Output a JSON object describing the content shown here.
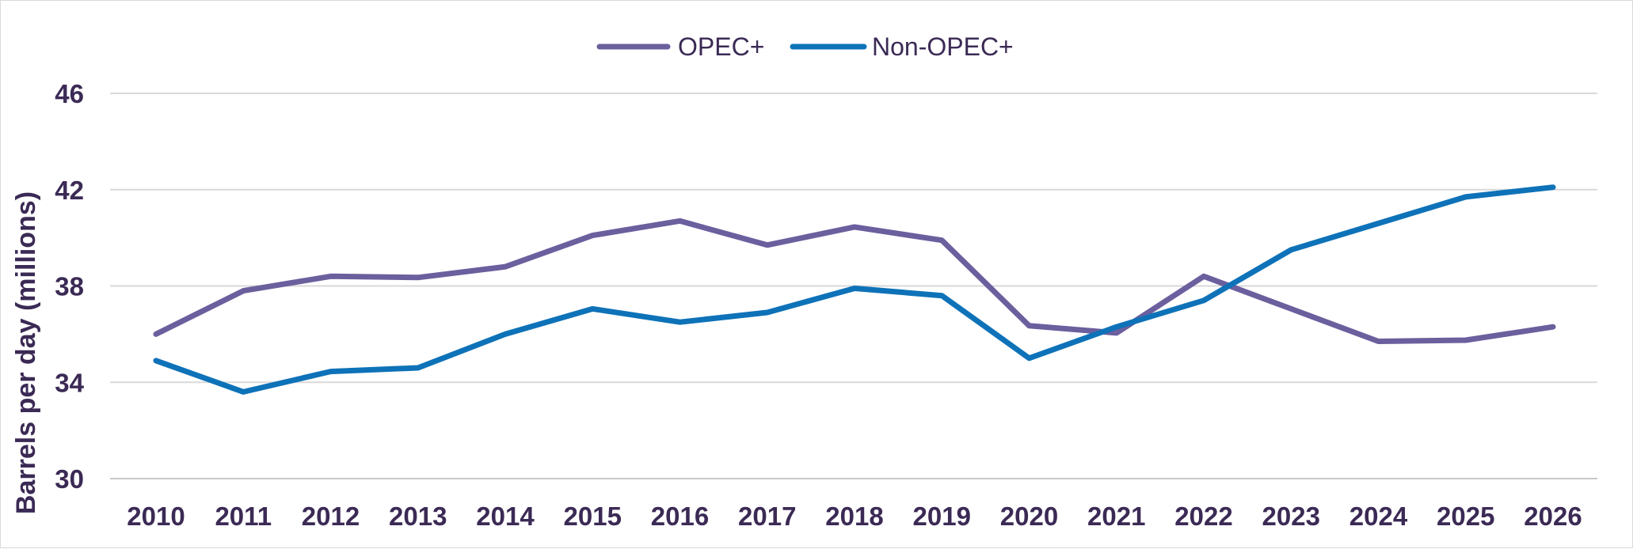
{
  "chart_data": {
    "type": "line",
    "title": "",
    "xlabel": "",
    "ylabel": "Barrels per day (millions)",
    "x": [
      2010,
      2011,
      2012,
      2013,
      2014,
      2015,
      2016,
      2017,
      2018,
      2019,
      2020,
      2021,
      2022,
      2023,
      2024,
      2025,
      2026
    ],
    "x_tick_labels": [
      "2010",
      "2011",
      "2012",
      "2013",
      "2014",
      "2015",
      "2016",
      "2017",
      "2018",
      "2019",
      "2020",
      "2021",
      "2022",
      "2023",
      "2024",
      "2025",
      "2026"
    ],
    "ylim": [
      30,
      46
    ],
    "y_ticks": [
      30,
      34,
      38,
      42,
      46
    ],
    "y_tick_labels": [
      "30",
      "34",
      "38",
      "42",
      "46"
    ],
    "grid": true,
    "legend_position": "top-center",
    "series": [
      {
        "name": "OPEC+",
        "color": "#6b5f9e",
        "values": [
          36.0,
          37.8,
          38.4,
          38.35,
          38.8,
          40.1,
          40.7,
          39.7,
          40.45,
          39.9,
          36.35,
          36.05,
          38.4,
          37.05,
          35.7,
          35.75,
          36.3
        ]
      },
      {
        "name": "Non-OPEC+",
        "color": "#0e72b8",
        "values": [
          34.9,
          33.6,
          34.45,
          34.6,
          36.0,
          37.05,
          36.5,
          36.9,
          37.9,
          37.6,
          35.0,
          36.3,
          37.4,
          39.5,
          40.6,
          41.7,
          42.1
        ]
      }
    ]
  }
}
